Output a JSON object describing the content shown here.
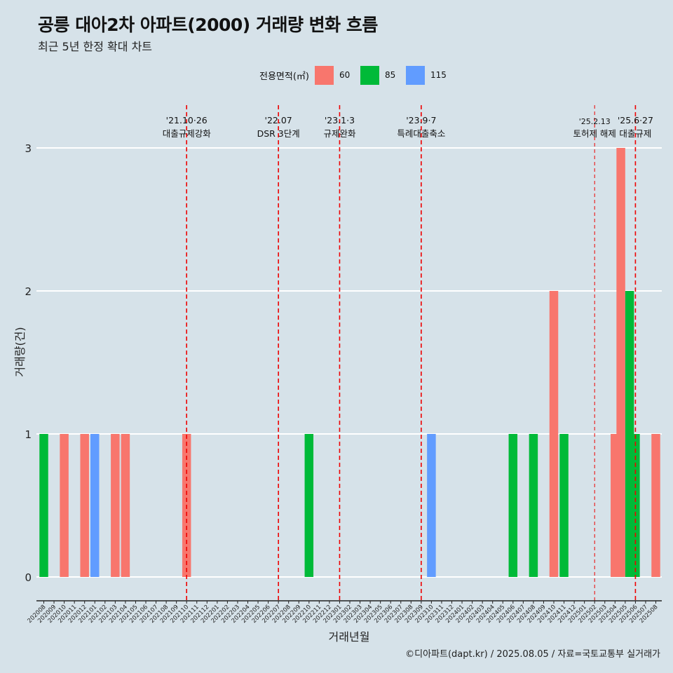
{
  "header": {
    "title": "공릉 대아2차 아파트(2000) 거래량 변화 흐름",
    "subtitle": "최근 5년 한정 확대 차트"
  },
  "legend": {
    "title": "전용면적(㎡)",
    "items": [
      {
        "label": "60",
        "color": "#f8766d"
      },
      {
        "label": "85",
        "color": "#00ba38"
      },
      {
        "label": "115",
        "color": "#619cff"
      }
    ]
  },
  "caption": "©디아파트(dapt.kr) / 2025.08.05 / 자료=국토교통부 실거래가",
  "colors": {
    "background": "#d6e2e9",
    "gridline": "#ffffff",
    "event_line": "#ee0000"
  },
  "chart_data": {
    "type": "bar",
    "xlabel": "거래년월",
    "ylabel": "거래량(건)",
    "ylim": [
      0,
      3
    ],
    "yticks": [
      0,
      1,
      2,
      3
    ],
    "categories": [
      "202008",
      "202009",
      "202010",
      "202011",
      "202012",
      "202101",
      "202102",
      "202103",
      "202104",
      "202105",
      "202106",
      "202107",
      "202108",
      "202109",
      "202110",
      "202111",
      "202112",
      "202201",
      "202202",
      "202203",
      "202204",
      "202205",
      "202206",
      "202207",
      "202208",
      "202209",
      "202210",
      "202211",
      "202212",
      "202301",
      "202302",
      "202303",
      "202304",
      "202305",
      "202306",
      "202307",
      "202308",
      "202309",
      "202310",
      "202311",
      "202312",
      "202401",
      "202402",
      "202403",
      "202404",
      "202405",
      "202406",
      "202407",
      "202408",
      "202409",
      "202410",
      "202411",
      "202412",
      "202501",
      "202502",
      "202503",
      "202504",
      "202505",
      "202506",
      "202507",
      "202508"
    ],
    "series": [
      {
        "name": "60",
        "color": "#f8766d",
        "values": [
          0,
          0,
          1,
          0,
          1,
          0,
          0,
          1,
          1,
          0,
          0,
          0,
          0,
          0,
          1,
          0,
          0,
          0,
          0,
          0,
          0,
          0,
          0,
          0,
          0,
          0,
          0,
          0,
          0,
          0,
          0,
          0,
          0,
          0,
          0,
          0,
          0,
          0,
          0,
          0,
          0,
          0,
          0,
          0,
          0,
          0,
          0,
          0,
          0,
          0,
          2,
          0,
          0,
          0,
          0,
          0,
          1,
          3,
          0,
          0,
          1
        ]
      },
      {
        "name": "85",
        "color": "#00ba38",
        "values": [
          1,
          0,
          0,
          0,
          0,
          0,
          0,
          0,
          0,
          0,
          0,
          0,
          0,
          0,
          0,
          0,
          0,
          0,
          0,
          0,
          0,
          0,
          0,
          0,
          0,
          0,
          1,
          0,
          0,
          0,
          0,
          0,
          0,
          0,
          0,
          0,
          0,
          0,
          0,
          0,
          0,
          0,
          0,
          0,
          0,
          0,
          1,
          0,
          1,
          0,
          0,
          1,
          0,
          0,
          0,
          0,
          0,
          2,
          1,
          0,
          0
        ]
      },
      {
        "name": "115",
        "color": "#619cff",
        "values": [
          0,
          0,
          0,
          0,
          0,
          1,
          0,
          0,
          0,
          0,
          0,
          0,
          0,
          0,
          0,
          0,
          0,
          0,
          0,
          0,
          0,
          0,
          0,
          0,
          0,
          0,
          0,
          0,
          0,
          0,
          0,
          0,
          0,
          0,
          0,
          0,
          0,
          0,
          1,
          0,
          0,
          0,
          0,
          0,
          0,
          0,
          0,
          0,
          0,
          0,
          0,
          0,
          0,
          0,
          0,
          0,
          0,
          0,
          0,
          0,
          0
        ]
      }
    ],
    "events": [
      {
        "month": "202110",
        "date": "'21.10·26",
        "label": "대출규제강화",
        "style": "dashed"
      },
      {
        "month": "202207",
        "date": "'22.07",
        "label": "DSR 3단계",
        "style": "dashed"
      },
      {
        "month": "202301",
        "date": "'23.1·3",
        "label": "규제완화",
        "style": "dashed"
      },
      {
        "month": "202309",
        "date": "'23.9·7",
        "label": "특례대출축소",
        "style": "dashed"
      },
      {
        "month": "202502",
        "date": "'25.2.13",
        "label": "토허제 해제",
        "style": "thin"
      },
      {
        "month": "202506",
        "date": "'25.6·27",
        "label": "대출규제",
        "style": "dashed"
      }
    ]
  }
}
